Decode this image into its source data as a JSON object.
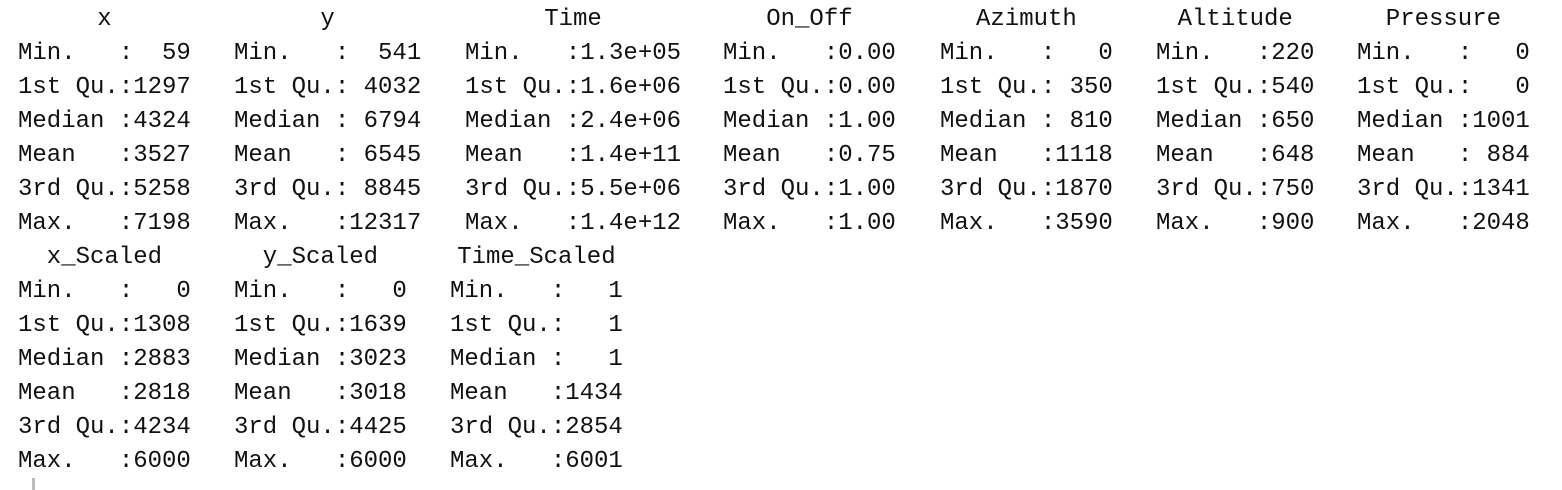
{
  "blocks": [
    {
      "columns": [
        {
          "header": "x",
          "rows": [
            "Min.   :  59",
            "1st Qu.:1297",
            "Median :4324",
            "Mean   :3527",
            "3rd Qu.:5258",
            "Max.   :7198"
          ]
        },
        {
          "header": "y",
          "rows": [
            "Min.   :  541",
            "1st Qu.: 4032",
            "Median : 6794",
            "Mean   : 6545",
            "3rd Qu.: 8845",
            "Max.   :12317"
          ]
        },
        {
          "header": "Time",
          "rows": [
            "Min.   :1.3e+05",
            "1st Qu.:1.6e+06",
            "Median :2.4e+06",
            "Mean   :1.4e+11",
            "3rd Qu.:5.5e+06",
            "Max.   :1.4e+12"
          ]
        },
        {
          "header": "On_Off",
          "rows": [
            "Min.   :0.00",
            "1st Qu.:0.00",
            "Median :1.00",
            "Mean   :0.75",
            "3rd Qu.:1.00",
            "Max.   :1.00"
          ]
        },
        {
          "header": "Azimuth",
          "rows": [
            "Min.   :   0",
            "1st Qu.: 350",
            "Median : 810",
            "Mean   :1118",
            "3rd Qu.:1870",
            "Max.   :3590"
          ]
        },
        {
          "header": "Altitude",
          "rows": [
            "Min.   :220",
            "1st Qu.:540",
            "Median :650",
            "Mean   :648",
            "3rd Qu.:750",
            "Max.   :900"
          ]
        },
        {
          "header": "Pressure",
          "rows": [
            "Min.   :   0",
            "1st Qu.:   0",
            "Median :1001",
            "Mean   : 884",
            "3rd Qu.:1341",
            "Max.   :2048"
          ]
        }
      ]
    },
    {
      "columns": [
        {
          "header": "x_Scaled",
          "rows": [
            "Min.   :   0",
            "1st Qu.:1308",
            "Median :2883",
            "Mean   :2818",
            "3rd Qu.:4234",
            "Max.   :6000"
          ]
        },
        {
          "header": "y_Scaled",
          "rows": [
            "Min.   :   0",
            "1st Qu.:1639",
            "Median :3023",
            "Mean   :3018",
            "3rd Qu.:4425",
            "Max.   :6000"
          ]
        },
        {
          "header": "Time_Scaled",
          "rows": [
            "Min.   :   1",
            "1st Qu.:   1",
            "Median :   1",
            "Mean   :1434",
            "3rd Qu.:2854",
            "Max.   :6001"
          ]
        }
      ]
    }
  ]
}
